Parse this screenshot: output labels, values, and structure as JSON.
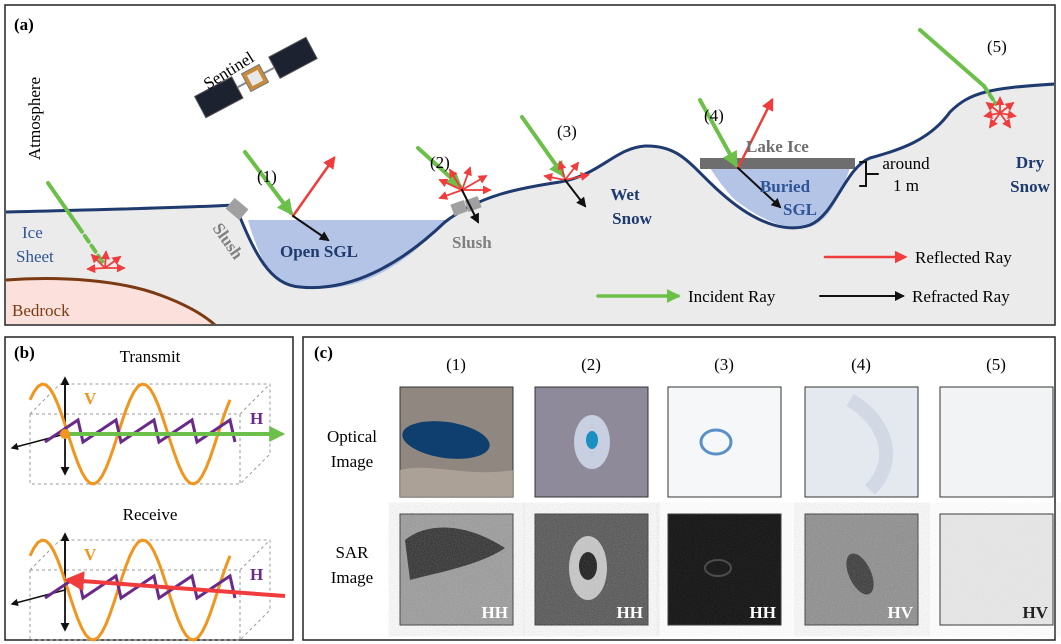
{
  "panel_a": {
    "label": "(a)",
    "atmosphere": "Atmosphere",
    "satellite": "Sentinel",
    "ice_sheet": [
      "Ice",
      "Sheet"
    ],
    "bedrock": "Bedrock",
    "slush_1": "Slush",
    "slush_2": "Slush",
    "open_sgl": "Open SGL",
    "wet_snow": [
      "Wet",
      "Snow"
    ],
    "lake_ice": "Lake Ice",
    "buried_sgl": [
      "Buried",
      "SGL"
    ],
    "thickness": [
      "around",
      "1 m"
    ],
    "dry_snow": [
      "Dry",
      "Snow"
    ],
    "cases": [
      "(1)",
      "(2)",
      "(3)",
      "(4)",
      "(5)"
    ],
    "legend": {
      "reflected": "Reflected Ray",
      "incident": "Incident Ray",
      "refracted": "Refracted Ray"
    }
  },
  "panel_b": {
    "label": "(b)",
    "transmit": {
      "title": "Transmit",
      "v": "V",
      "h": "H"
    },
    "receive": {
      "title": "Receive",
      "v": "V",
      "h": "H"
    }
  },
  "panel_c": {
    "label": "(c)",
    "columns": [
      "(1)",
      "(2)",
      "(3)",
      "(4)",
      "(5)"
    ],
    "rows": [
      [
        "Optical",
        "Image"
      ],
      [
        "SAR",
        "Image"
      ]
    ],
    "polarizations": [
      "HH",
      "HH",
      "HH",
      "HV",
      "HV"
    ]
  }
}
